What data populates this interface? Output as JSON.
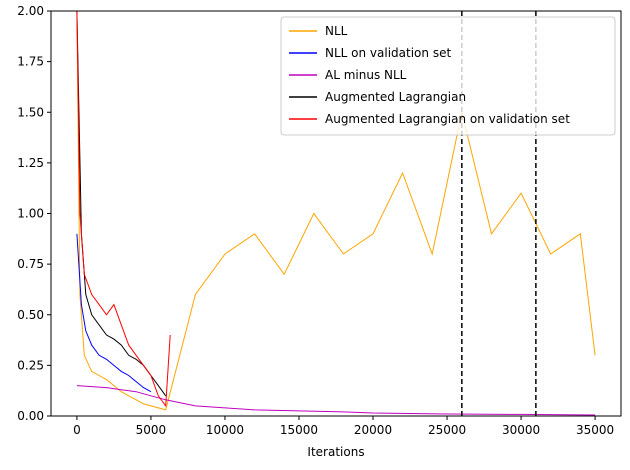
{
  "chart_data": {
    "type": "line",
    "title": "",
    "xlabel": "Iterations",
    "ylabel": "",
    "xlim": [
      -1750,
      36750
    ],
    "ylim": [
      0,
      2.0
    ],
    "xticks": [
      0,
      5000,
      10000,
      15000,
      20000,
      25000,
      30000,
      35000
    ],
    "yticks": [
      0.0,
      0.25,
      0.5,
      0.75,
      1.0,
      1.25,
      1.5,
      1.75,
      2.0
    ],
    "xtick_labels": [
      "0",
      "5000",
      "10000",
      "15000",
      "20000",
      "25000",
      "30000",
      "35000"
    ],
    "ytick_labels": [
      "0.00",
      "0.25",
      "0.50",
      "0.75",
      "1.00",
      "1.25",
      "1.50",
      "1.75",
      "2.00"
    ],
    "grid": false,
    "legend_position": "top-right",
    "vlines": [
      {
        "x": 26000,
        "color": "#000000",
        "style": "dashed"
      },
      {
        "x": 31000,
        "color": "#000000",
        "style": "dashed"
      }
    ],
    "series": [
      {
        "name": "NLL",
        "color": "#ffa500",
        "x": [
          0,
          200,
          500,
          1000,
          1500,
          2000,
          2500,
          3000,
          3500,
          4000,
          4500,
          5000,
          5500,
          6000,
          8000,
          10000,
          12000,
          14000,
          16000,
          18000,
          20000,
          22000,
          24000,
          26000,
          28000,
          30000,
          32000,
          34000,
          35000
        ],
        "y": [
          2.0,
          0.6,
          0.3,
          0.22,
          0.2,
          0.18,
          0.15,
          0.12,
          0.1,
          0.08,
          0.06,
          0.05,
          0.04,
          0.03,
          0.6,
          0.8,
          0.9,
          0.7,
          1.0,
          0.8,
          0.9,
          1.2,
          0.8,
          1.5,
          0.9,
          1.1,
          0.8,
          0.9,
          0.3
        ]
      },
      {
        "name": "NLL on validation set",
        "color": "#0000ff",
        "x": [
          0,
          300,
          600,
          1000,
          1500,
          2000,
          2500,
          3000,
          3500,
          4000,
          4500,
          5000
        ],
        "y": [
          0.9,
          0.55,
          0.42,
          0.35,
          0.3,
          0.28,
          0.25,
          0.22,
          0.2,
          0.17,
          0.14,
          0.12
        ]
      },
      {
        "name": "AL minus NLL",
        "color": "#bf00bf",
        "x": [
          0,
          1000,
          2000,
          3000,
          4000,
          5000,
          6000,
          8000,
          10000,
          12000,
          15000,
          18000,
          20000,
          25000,
          30000,
          35000
        ],
        "y": [
          0.15,
          0.145,
          0.14,
          0.13,
          0.12,
          0.1,
          0.08,
          0.05,
          0.04,
          0.03,
          0.025,
          0.02,
          0.015,
          0.01,
          0.008,
          0.005
        ]
      },
      {
        "name": "Augmented Lagrangian",
        "color": "#000000",
        "x": [
          0,
          300,
          600,
          1000,
          1500,
          2000,
          2500,
          3000,
          3500,
          4000,
          4500,
          5000,
          5500,
          6000
        ],
        "y": [
          2.0,
          0.9,
          0.6,
          0.5,
          0.45,
          0.4,
          0.38,
          0.35,
          0.3,
          0.28,
          0.25,
          0.2,
          0.15,
          0.1
        ]
      },
      {
        "name": "Augmented Lagrangian on validation set",
        "color": "#ff0000",
        "x": [
          0,
          200,
          500,
          1000,
          1500,
          2000,
          2500,
          3000,
          3500,
          4000,
          4500,
          5000,
          5500,
          6000,
          6300
        ],
        "y": [
          2.0,
          1.0,
          0.7,
          0.6,
          0.55,
          0.5,
          0.55,
          0.45,
          0.35,
          0.3,
          0.25,
          0.2,
          0.1,
          0.05,
          0.4
        ]
      }
    ]
  }
}
